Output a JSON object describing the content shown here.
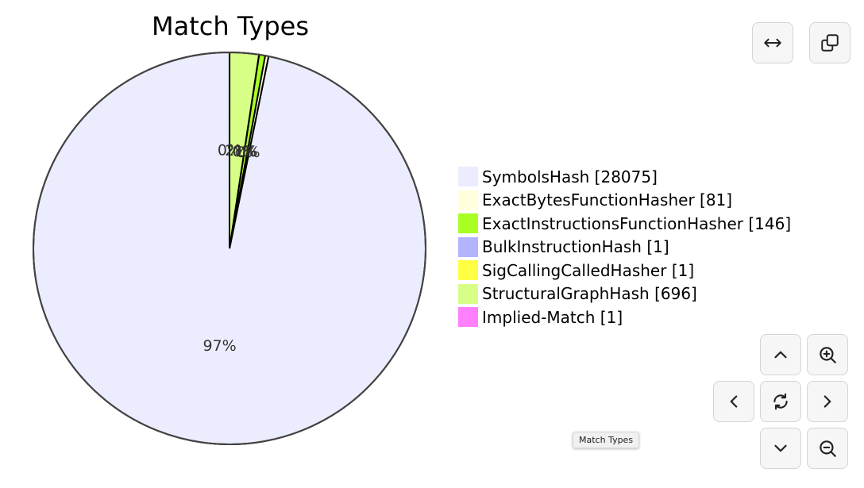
{
  "chart_data": {
    "type": "pie",
    "title": "Match Types",
    "slices": [
      {
        "label": "SymbolsHash [28075]",
        "value": 28075,
        "color": "#ececff"
      },
      {
        "label": "ExactBytesFunctionHasher [81]",
        "value": 81,
        "color": "#ffffde"
      },
      {
        "label": "ExactInstructionsFunctionHasher [146]",
        "value": 146,
        "color": "#aaff22"
      },
      {
        "label": "BulkInstructionHash [1]",
        "value": 1,
        "color": "#b3b3ff"
      },
      {
        "label": "SigCallingCalledHasher [1]",
        "value": 1,
        "color": "#ffff44"
      },
      {
        "label": "StructuralGraphHash [696]",
        "value": 696,
        "color": "#d7ff88"
      },
      {
        "label": "Implied-Match [1]",
        "value": 1,
        "color": "#ff80ff"
      }
    ],
    "slice_labels": [
      "97%",
      "0%",
      "1%",
      "0%",
      "0%",
      "2%",
      "0%"
    ],
    "legend_placement": "right"
  },
  "tooltip": "Match Types",
  "controls": {
    "expand": "arrows-horizontal-icon",
    "copy": "copy-icon",
    "pan_up": "chevron-up-icon",
    "zoom_in": "zoom-in-icon",
    "pan_left": "chevron-left-icon",
    "reset": "refresh-icon",
    "pan_right": "chevron-right-icon",
    "pan_down": "chevron-down-icon",
    "zoom_out": "zoom-out-icon"
  }
}
